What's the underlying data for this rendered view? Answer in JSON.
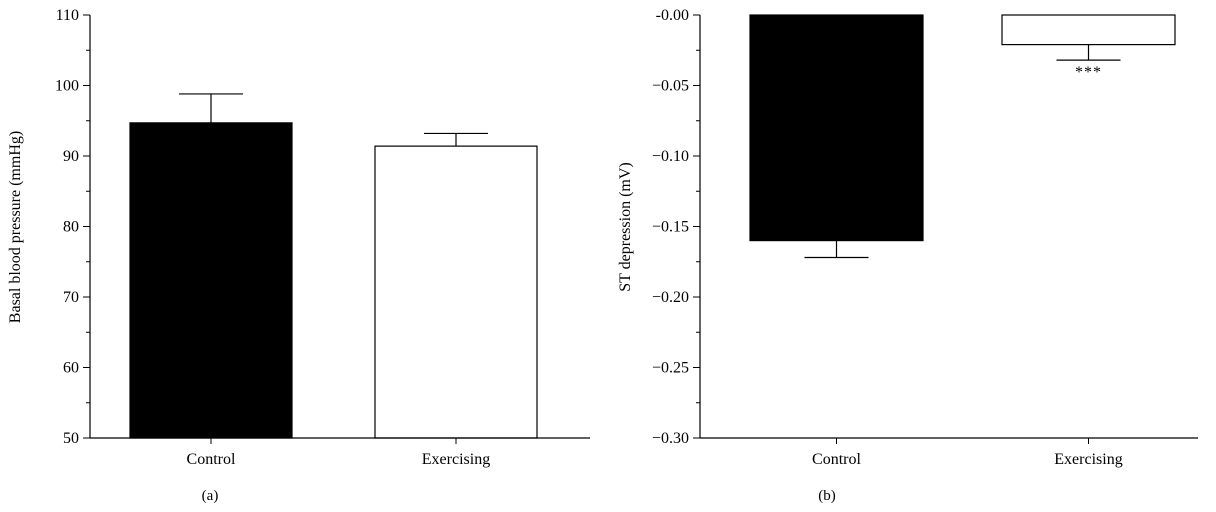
{
  "chart_data": [
    {
      "type": "bar",
      "label": "(a)",
      "categories": [
        "Control",
        "Exercising"
      ],
      "values": [
        94.7,
        91.4
      ],
      "errors": [
        4.1,
        1.8
      ],
      "bar_colors": [
        "#000000",
        "#ffffff"
      ],
      "ylabel": "Basal blood pressure (mmHg)",
      "xlabel": "",
      "ylim": [
        50,
        110
      ],
      "yticks": [
        "50",
        "60",
        "70",
        "80",
        "90",
        "100",
        "110"
      ],
      "minor_ticks": true,
      "grid": false,
      "annotations": []
    },
    {
      "type": "bar",
      "label": "(b)",
      "categories": [
        "Control",
        "Exercising"
      ],
      "values": [
        -0.16,
        -0.021
      ],
      "errors": [
        0.012,
        0.011
      ],
      "bar_colors": [
        "#000000",
        "#ffffff"
      ],
      "ylabel": "ST depression (mV)",
      "xlabel": "",
      "ylim": [
        -0.3,
        0.0
      ],
      "yticks": [
        "-0.00",
        "−0.05",
        "−0.10",
        "−0.15",
        "−0.20",
        "−0.25",
        "−0.30"
      ],
      "minor_ticks": true,
      "grid": false,
      "annotations": [
        {
          "category": "Exercising",
          "text": "***"
        }
      ]
    }
  ]
}
